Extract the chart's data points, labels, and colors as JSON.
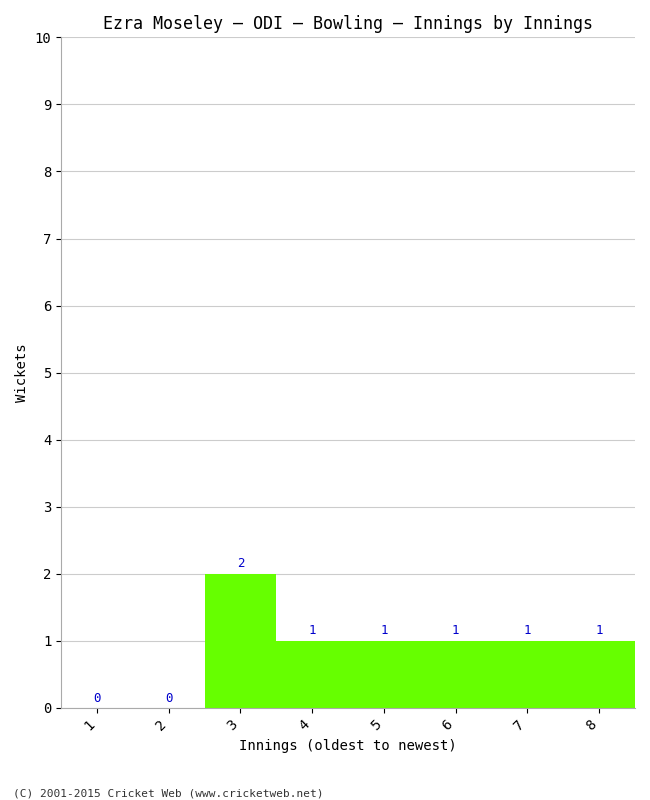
{
  "title": "Ezra Moseley – ODI – Bowling – Innings by Innings",
  "xlabel": "Innings (oldest to newest)",
  "ylabel": "Wickets",
  "categories": [
    "1",
    "2",
    "3",
    "4",
    "5",
    "6",
    "7",
    "8"
  ],
  "values": [
    0,
    0,
    2,
    1,
    1,
    1,
    1,
    1
  ],
  "bar_color": "#66ff00",
  "bar_edge_color": "#66ff00",
  "ylim": [
    0,
    10
  ],
  "yticks": [
    0,
    1,
    2,
    3,
    4,
    5,
    6,
    7,
    8,
    9,
    10
  ],
  "label_color": "#0000cc",
  "background_color": "#ffffff",
  "grid_color": "#cccccc",
  "title_fontsize": 12,
  "axis_fontsize": 10,
  "tick_fontsize": 10,
  "label_fontsize": 9,
  "footer": "(C) 2001-2015 Cricket Web (www.cricketweb.net)"
}
